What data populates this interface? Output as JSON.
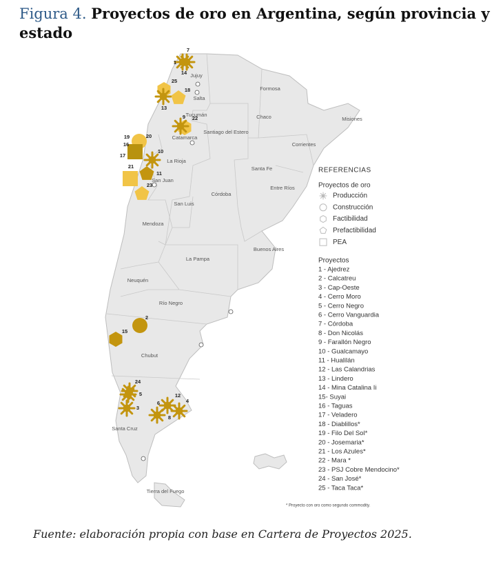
{
  "figure": {
    "label": "Figura 4.",
    "title": "Proyectos de oro en Argentina, según provincia y estado"
  },
  "provinces": [
    "Jujuy",
    "Salta",
    "Formosa",
    "Chaco",
    "Misiones",
    "Tucumán",
    "Santiago del Estero",
    "Catamarca",
    "Corrientes",
    "La Rioja",
    "Santa Fe",
    "San Juan",
    "Entre Ríos",
    "Córdoba",
    "San Luis",
    "Mendoza",
    "Buenos Aires",
    "La Pampa",
    "Neuquén",
    "Río Negro",
    "Chubut",
    "Santa Cruz",
    "Tierra del Fuego"
  ],
  "marker_labels": [
    "7",
    "1",
    "14",
    "25",
    "18",
    "13",
    "9",
    "22",
    "19",
    "20",
    "16",
    "17",
    "10",
    "21",
    "11",
    "23",
    "2",
    "15",
    "24",
    "5",
    "3",
    "12",
    "4",
    "6",
    "8"
  ],
  "legend": {
    "title": "REFERENCIAS",
    "status_title": "Proyectos de oro",
    "statuses": [
      "Producción",
      "Construcción",
      "Factibilidad",
      "Prefactibilidad",
      "PEA"
    ],
    "projects_title": "Proyectos",
    "projects": [
      "1 - Ajedrez",
      "2 - Calcatreu",
      "3 - Cap-Oeste",
      "4 - Cerro Moro",
      "5 - Cerro Negro",
      "6 - Cerro Vanguardia",
      "7 - Córdoba",
      "8 - Don Nicolás",
      "9 - Farallón Negro",
      "10 - Gualcamayo",
      "11 - Hualilán",
      "12 - Las Calandrias",
      "13 - Lindero",
      "14 - Mina Catalina Ii",
      "15- Suyai",
      "16 - Taguas",
      "17 - Veladero",
      "18 - Diablillos*",
      "19 - Filo Del Sol*",
      "20 - Josemaria*",
      "21 - Los Azules*",
      "22 - Mara *",
      "23 - PSJ Cobre Mendocino*",
      "24 - San José*",
      "25 - Taca Taca*"
    ]
  },
  "note": "* Proyecto con oro como segundo commodity.",
  "source": "Fuente: elaboración propia con base en Cartera de Proyectos 2025."
}
